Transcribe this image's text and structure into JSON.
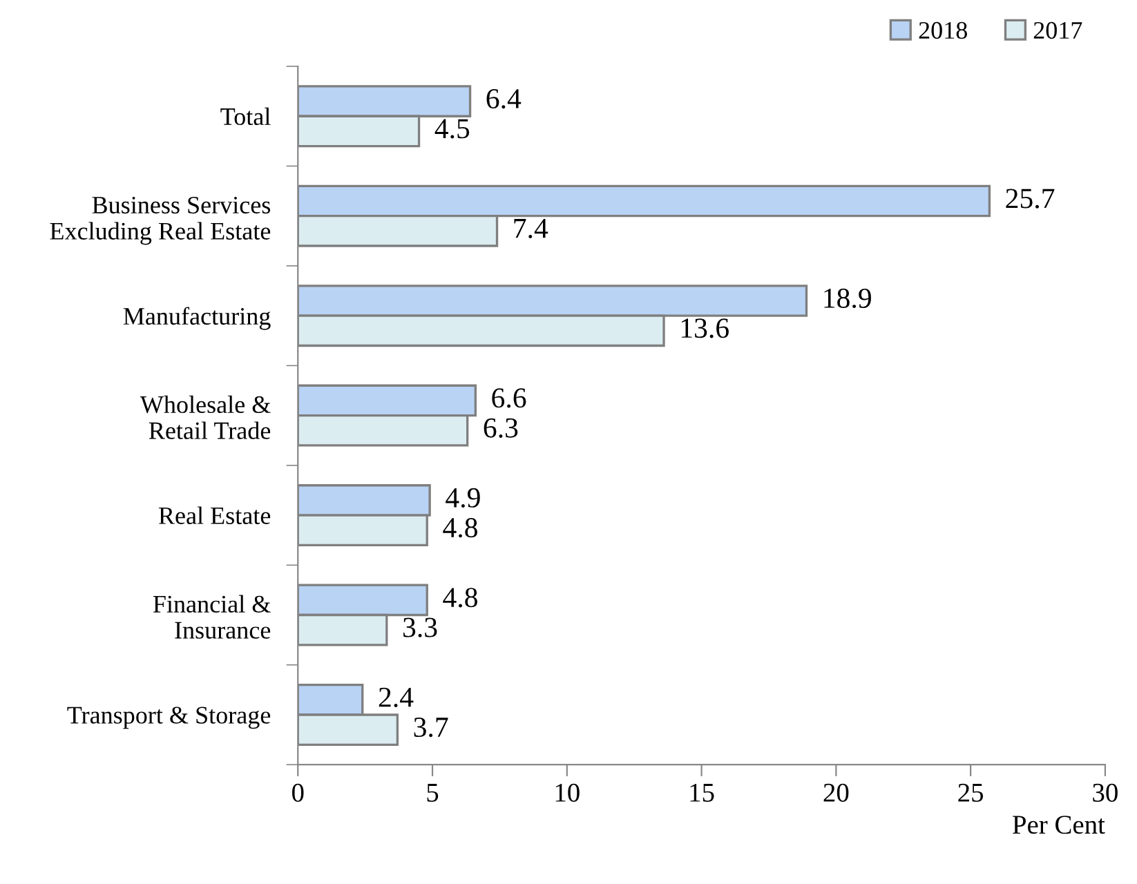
{
  "chart_data": {
    "type": "bar",
    "orientation": "horizontal",
    "xlabel": "Per Cent",
    "categories": [
      "Total",
      "Business Services\nExcluding Real Estate",
      "Manufacturing",
      "Wholesale &\nRetail Trade",
      "Real Estate",
      "Financial &\nInsurance",
      "Transport & Storage"
    ],
    "series": [
      {
        "name": "2018",
        "color": "#b9d3f5",
        "values": [
          6.4,
          25.7,
          18.9,
          6.6,
          4.9,
          4.8,
          2.4
        ]
      },
      {
        "name": "2017",
        "color": "#dcedf2",
        "values": [
          4.5,
          7.4,
          13.6,
          6.3,
          4.8,
          3.3,
          3.7
        ]
      }
    ],
    "xlim": [
      0,
      30
    ],
    "xticks": [
      0,
      5,
      10,
      15,
      20,
      25,
      30
    ],
    "data_labels": true,
    "grid": false,
    "legend": "top right"
  }
}
